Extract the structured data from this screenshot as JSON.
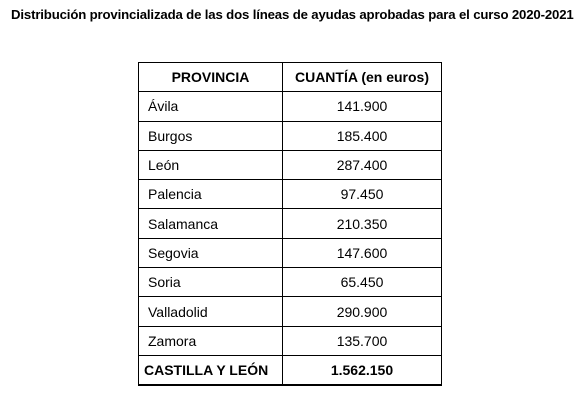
{
  "title": "Distribución provincializada de las dos líneas de ayudas aprobadas para el curso 2020-2021",
  "table": {
    "headers": [
      "PROVINCIA",
      "CUANTÍA (en euros)"
    ],
    "rows": [
      {
        "provincia": "Ávila",
        "cuantia": "141.900"
      },
      {
        "provincia": "Burgos",
        "cuantia": "185.400"
      },
      {
        "provincia": "León",
        "cuantia": "287.400"
      },
      {
        "provincia": "Palencia",
        "cuantia": "97.450"
      },
      {
        "provincia": "Salamanca",
        "cuantia": "210.350"
      },
      {
        "provincia": "Segovia",
        "cuantia": "147.600"
      },
      {
        "provincia": "Soria",
        "cuantia": "65.450"
      },
      {
        "provincia": "Valladolid",
        "cuantia": "290.900"
      },
      {
        "provincia": "Zamora",
        "cuantia": "135.700"
      }
    ],
    "total": {
      "provincia": "CASTILLA Y LEÓN",
      "cuantia": "1.562.150"
    }
  }
}
